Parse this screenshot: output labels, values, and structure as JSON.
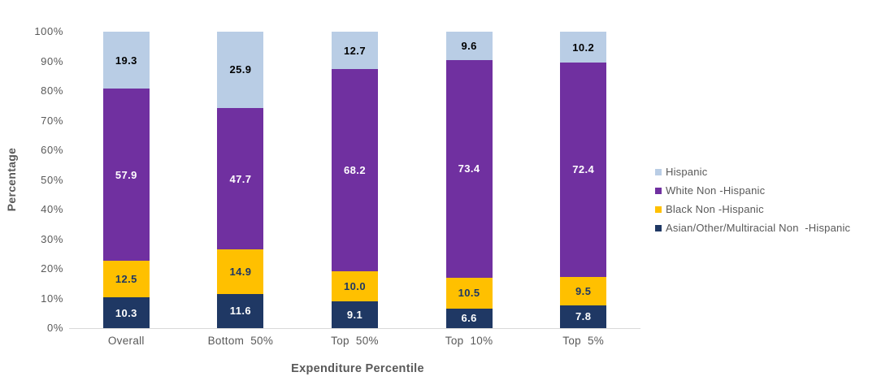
{
  "chart_data": {
    "type": "bar",
    "stacked": true,
    "xlabel": "Expenditure Percentile",
    "ylabel": "Percentage",
    "ylim": [
      0,
      100
    ],
    "yticks": [
      0,
      10,
      20,
      30,
      40,
      50,
      60,
      70,
      80,
      90,
      100
    ],
    "ytick_suffix": "%",
    "grid": false,
    "legend_position": "right",
    "categories": [
      "Overall",
      "Bottom 50%",
      "Top 50%",
      "Top 10%",
      "Top 5%"
    ],
    "series": [
      {
        "name": "Asian/Other/Multiracial Non -Hispanic",
        "color": "#1f3864",
        "label_color": "#ffffff",
        "values": [
          10.3,
          11.6,
          9.1,
          6.6,
          7.8
        ]
      },
      {
        "name": "Black Non -Hispanic",
        "color": "#ffc000",
        "label_color": "#1f3864",
        "values": [
          12.5,
          14.9,
          10.0,
          10.5,
          9.5
        ]
      },
      {
        "name": "White Non -Hispanic",
        "color": "#7030a0",
        "label_color": "#ffffff",
        "values": [
          57.9,
          47.7,
          68.2,
          73.4,
          72.4
        ]
      },
      {
        "name": "Hispanic",
        "color": "#b9cde5",
        "label_color": "#000000",
        "values": [
          19.3,
          25.9,
          12.7,
          9.6,
          10.2
        ]
      }
    ],
    "legend_entries": [
      {
        "label": "Hispanic",
        "color": "#b9cde5"
      },
      {
        "label": "White Non -Hispanic",
        "color": "#7030a0"
      },
      {
        "label": "Black Non -Hispanic",
        "color": "#ffc000"
      },
      {
        "label": "Asian/Other/Multiracial Non  -Hispanic",
        "color": "#1f3864"
      }
    ],
    "colors": {
      "axis_line": "#d9d9d9",
      "axis_text": "#595959"
    }
  }
}
